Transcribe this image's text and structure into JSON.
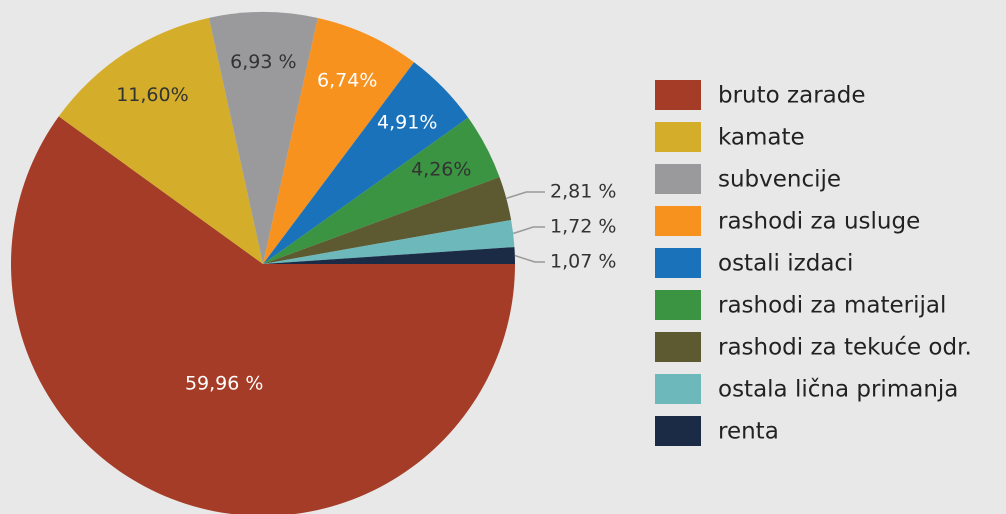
{
  "chart_data": {
    "type": "pie",
    "categories": [
      "bruto zarade",
      "kamate",
      "subvencije",
      "rashodi za usluge",
      "ostali izdaci",
      "rashodi za materijal",
      "rashodi za tekuće odr.",
      "ostala lična primanja",
      "renta"
    ],
    "values": [
      59.96,
      11.6,
      6.93,
      6.74,
      4.91,
      4.26,
      2.81,
      1.72,
      1.07
    ],
    "value_labels": [
      "59,96 %",
      "11,60%",
      "6,93 %",
      "6,74%",
      "4,91%",
      "4,26%",
      "2,81 %",
      "1,72 %",
      "1,07 %"
    ],
    "colors": [
      "#a53c27",
      "#d4ae2b",
      "#9a9a9c",
      "#f7921e",
      "#1a72bb",
      "#3a9441",
      "#5d5a32",
      "#6cb8ba",
      "#1b2a45"
    ],
    "label_colors": [
      "#ffffff",
      "#333333",
      "#333333",
      "#ffffff",
      "#ffffff",
      "#333333",
      "#333333",
      "#333333",
      "#333333"
    ],
    "legend": "right"
  }
}
